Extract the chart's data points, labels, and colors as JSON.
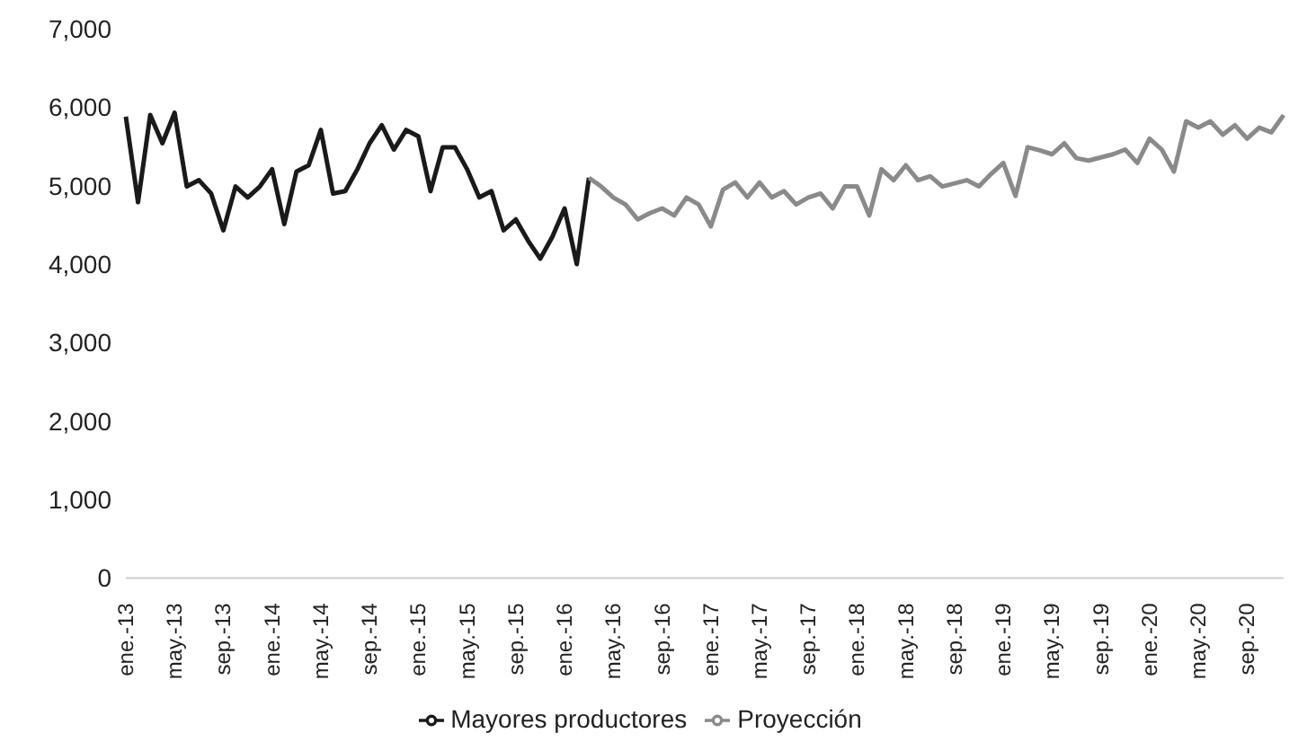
{
  "chart_data": {
    "type": "line",
    "categories": [
      "ene.-13",
      null,
      null,
      null,
      "may.-13",
      null,
      null,
      null,
      "sep.-13",
      null,
      null,
      null,
      "ene.-14",
      null,
      null,
      null,
      "may.-14",
      null,
      null,
      null,
      "sep.-14",
      null,
      null,
      null,
      "ene.-15",
      null,
      null,
      null,
      "may.-15",
      null,
      null,
      null,
      "sep.-15",
      null,
      null,
      null,
      "ene.-16",
      null,
      null,
      null,
      "may.-16",
      null,
      null,
      null,
      "sep.-16",
      null,
      null,
      null,
      "ene.-17",
      null,
      null,
      null,
      "may.-17",
      null,
      null,
      null,
      "sep.-17",
      null,
      null,
      null,
      "ene.-18",
      null,
      null,
      null,
      "may.-18",
      null,
      null,
      null,
      "sep.-18",
      null,
      null,
      null,
      "ene.-19",
      null,
      null,
      null,
      "may.-19",
      null,
      null,
      null,
      "sep.-19",
      null,
      null,
      null,
      "ene.-20",
      null,
      null,
      null,
      "may.-20",
      null,
      null,
      null,
      "sep.-20",
      null,
      null,
      null
    ],
    "series": [
      {
        "name": "Mayores productores",
        "color": "#1a1a1a",
        "values": [
          5880,
          4790,
          5900,
          5540,
          5930,
          4990,
          5070,
          4900,
          4430,
          4990,
          4850,
          4990,
          5210,
          4510,
          5180,
          5260,
          5710,
          4900,
          4930,
          5210,
          5540,
          5770,
          5460,
          5710,
          5630,
          4930,
          5490,
          5490,
          5210,
          4850,
          4930,
          4430,
          4570,
          4300,
          4070,
          4350,
          4710,
          4000,
          5100,
          null,
          null,
          null,
          null,
          null,
          null,
          null,
          null,
          null,
          null,
          null,
          null,
          null,
          null,
          null,
          null,
          null,
          null,
          null,
          null,
          null,
          null,
          null,
          null,
          null,
          null,
          null,
          null,
          null,
          null,
          null,
          null,
          null,
          null,
          null,
          null,
          null,
          null,
          null,
          null,
          null,
          null,
          null,
          null,
          null,
          null,
          null,
          null,
          null,
          null,
          null,
          null,
          null,
          null,
          null,
          null,
          null
        ]
      },
      {
        "name": "Proyección",
        "color": "#8a8a8a",
        "values": [
          null,
          null,
          null,
          null,
          null,
          null,
          null,
          null,
          null,
          null,
          null,
          null,
          null,
          null,
          null,
          null,
          null,
          null,
          null,
          null,
          null,
          null,
          null,
          null,
          null,
          null,
          null,
          null,
          null,
          null,
          null,
          null,
          null,
          null,
          null,
          null,
          null,
          null,
          5100,
          4990,
          4850,
          4760,
          4570,
          4650,
          4710,
          4620,
          4850,
          4760,
          4480,
          4950,
          5040,
          4850,
          5040,
          4850,
          4930,
          4760,
          4850,
          4900,
          4710,
          4990,
          4990,
          4620,
          5210,
          5070,
          5260,
          5070,
          5120,
          4990,
          5030,
          5070,
          4990,
          5150,
          5290,
          4870,
          5490,
          5450,
          5400,
          5540,
          5350,
          5320,
          5360,
          5400,
          5460,
          5290,
          5600,
          5460,
          5180,
          5820,
          5740,
          5820,
          5650,
          5770,
          5600,
          5740,
          5680,
          5900
        ]
      }
    ],
    "ylim": [
      0,
      7000
    ],
    "yticks": [
      0,
      {
        "value": 1000,
        "label": "1,000"
      },
      {
        "value": 2000,
        "label": "2,000"
      },
      {
        "value": 3000,
        "label": "3,000"
      },
      {
        "value": 4000,
        "label": "4,000"
      },
      {
        "value": 5000,
        "label": "5,000"
      },
      {
        "value": 6000,
        "label": "6,000"
      },
      {
        "value": 7000,
        "label": "7,000"
      }
    ],
    "grid": false,
    "legend": "bottom",
    "marker": "none",
    "line_style": "solid"
  }
}
